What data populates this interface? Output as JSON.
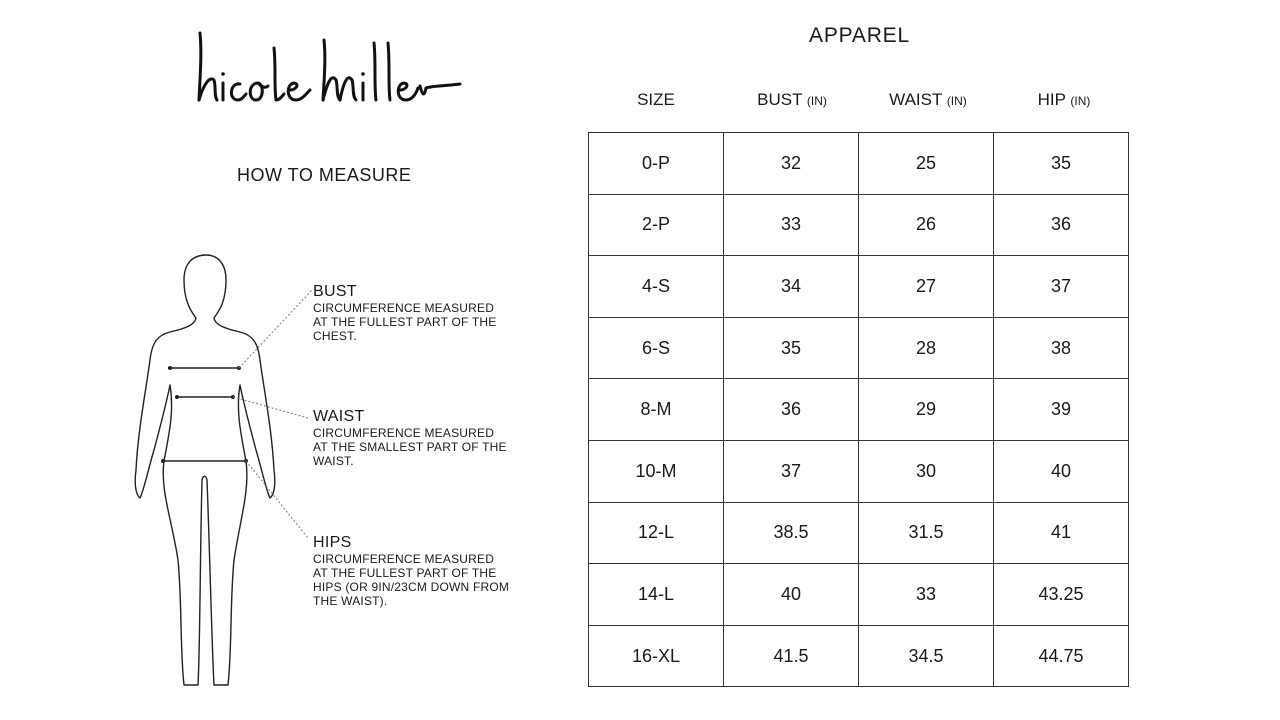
{
  "brand": {
    "logo_text": "nicole miller"
  },
  "how_to_measure": {
    "title": "HOW TO MEASURE",
    "items": [
      {
        "label": "BUST",
        "lines": [
          "CIRCUMFERENCE MEASURED",
          "AT THE FULLEST PART OF THE",
          "CHEST."
        ]
      },
      {
        "label": "WAIST",
        "lines": [
          "CIRCUMFERENCE MEASURED",
          "AT THE SMALLEST PART OF THE",
          "WAIST."
        ]
      },
      {
        "label": "HIPS",
        "lines": [
          "CIRCUMFERENCE MEASURED",
          "AT THE FULLEST PART OF THE",
          "HIPS (OR 9IN/23CM DOWN FROM",
          "THE WAIST)."
        ]
      }
    ]
  },
  "size_chart": {
    "title": "APPAREL",
    "headers": [
      {
        "label": "SIZE",
        "unit": ""
      },
      {
        "label": "BUST",
        "unit": "(IN)"
      },
      {
        "label": "WAIST",
        "unit": "(IN)"
      },
      {
        "label": "HIP",
        "unit": "(IN)"
      }
    ],
    "rows": [
      [
        "0-P",
        "32",
        "25",
        "35"
      ],
      [
        "2-P",
        "33",
        "26",
        "36"
      ],
      [
        "4-S",
        "34",
        "27",
        "37"
      ],
      [
        "6-S",
        "35",
        "28",
        "38"
      ],
      [
        "8-M",
        "36",
        "29",
        "39"
      ],
      [
        "10-M",
        "37",
        "30",
        "40"
      ],
      [
        "12-L",
        "38.5",
        "31.5",
        "41"
      ],
      [
        "14-L",
        "40",
        "33",
        "43.25"
      ],
      [
        "16-XL",
        "41.5",
        "34.5",
        "44.75"
      ]
    ]
  }
}
